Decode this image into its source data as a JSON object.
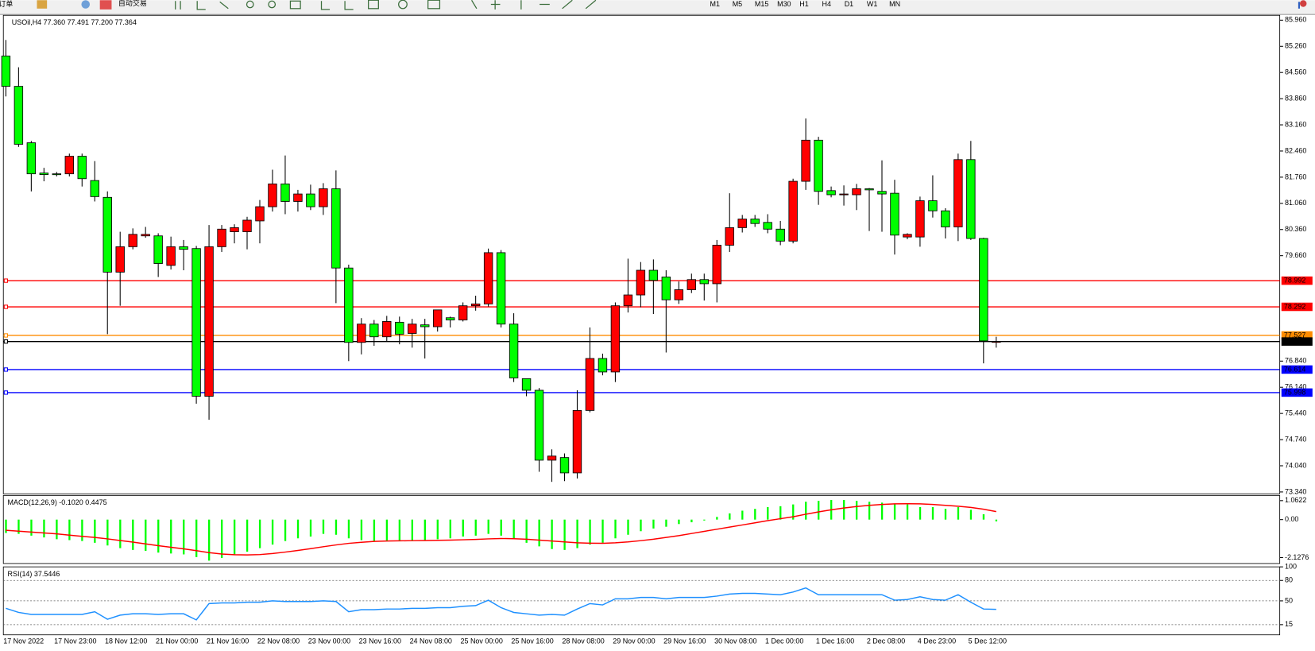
{
  "toolbar": {
    "order": "新订单",
    "autotrade": "自动交易",
    "timeframes": [
      "M1",
      "M5",
      "M15",
      "M30",
      "H1",
      "H4",
      "D1",
      "W1",
      "MN"
    ]
  },
  "chart_data": [
    {
      "type": "candlestick",
      "title": "USOil,H4 77.360 77.491 77.200 77.364",
      "categories": [
        "17 Nov 2022",
        null,
        null,
        null,
        "17 Nov 23:00",
        null,
        null,
        null,
        "18 Nov 12:00",
        null,
        null,
        null,
        "21 Nov 00:00",
        null,
        null,
        null,
        "21 Nov 16:00",
        null,
        null,
        null,
        "22 Nov 08:00",
        null,
        null,
        null,
        "23 Nov 00:00",
        null,
        null,
        null,
        "23 Nov 16:00",
        null,
        null,
        null,
        "24 Nov 08:00",
        null,
        null,
        null,
        "25 Nov 00:00",
        null,
        null,
        null,
        "25 Nov 16:00",
        null,
        null,
        null,
        "28 Nov 08:00",
        null,
        null,
        null,
        "29 Nov 00:00",
        null,
        null,
        null,
        "29 Nov 16:00",
        null,
        null,
        null,
        "30 Nov 08:00",
        null,
        null,
        null,
        "1 Dec 00:00",
        null,
        null,
        null,
        "1 Dec 16:00",
        null,
        null,
        null,
        "2 Dec 08:00",
        null,
        null,
        null,
        "4 Dec 23:00",
        null,
        null,
        null,
        "5 Dec 12:00",
        null,
        null
      ],
      "open": [
        85.0,
        84.19,
        82.68,
        81.87,
        81.85,
        81.85,
        82.32,
        81.67,
        81.22,
        79.22,
        79.9,
        80.19,
        80.19,
        79.4,
        79.9,
        79.85,
        75.9,
        79.9,
        80.3,
        80.3,
        80.59,
        80.97,
        81.58,
        81.11,
        81.31,
        80.97,
        81.45,
        79.33,
        77.34,
        77.83,
        77.49,
        77.88,
        77.58,
        77.81,
        77.76,
        78.0,
        77.94,
        78.32,
        78.37,
        79.74,
        77.83,
        76.37,
        76.06,
        74.19,
        74.26,
        73.85,
        75.52,
        76.91,
        76.55,
        78.32,
        78.61,
        79.27,
        79.09,
        78.48,
        78.75,
        79.02,
        78.91,
        79.94,
        80.41,
        80.64,
        80.55,
        80.37,
        80.05,
        81.65,
        82.75,
        81.4,
        81.31,
        81.29,
        81.45,
        81.38,
        81.33,
        80.16,
        80.16,
        81.13,
        80.86,
        80.43,
        82.23,
        80.12,
        77.36
      ],
      "high": [
        85.43,
        84.7,
        82.73,
        82.01,
        81.9,
        82.39,
        82.39,
        82.19,
        81.38,
        80.3,
        80.39,
        80.43,
        80.26,
        80.17,
        80.08,
        79.92,
        80.48,
        80.48,
        80.5,
        80.7,
        81.15,
        81.96,
        82.34,
        81.42,
        81.56,
        81.6,
        81.94,
        79.42,
        77.99,
        77.94,
        78.05,
        78.03,
        77.97,
        77.97,
        78.21,
        78.03,
        78.41,
        78.59,
        79.85,
        79.81,
        78.12,
        76.37,
        76.12,
        74.48,
        74.37,
        76.06,
        77.74,
        77.04,
        78.41,
        79.58,
        79.49,
        79.56,
        79.27,
        78.97,
        79.18,
        79.18,
        80.08,
        81.33,
        80.75,
        80.75,
        80.77,
        80.59,
        81.72,
        83.33,
        82.84,
        81.51,
        81.54,
        81.58,
        81.47,
        82.21,
        81.69,
        80.26,
        81.24,
        81.81,
        80.93,
        82.39,
        82.73,
        80.14,
        77.491
      ],
      "low": [
        83.92,
        82.57,
        81.38,
        81.65,
        81.78,
        81.78,
        81.51,
        81.11,
        77.56,
        78.32,
        79.83,
        80.14,
        79.09,
        79.29,
        79.27,
        75.7,
        75.27,
        79.76,
        79.99,
        79.83,
        79.99,
        80.84,
        80.77,
        80.84,
        80.88,
        80.75,
        78.39,
        76.84,
        77.02,
        77.25,
        77.36,
        77.29,
        77.2,
        76.91,
        77.63,
        77.74,
        77.9,
        78.19,
        78.3,
        77.74,
        76.28,
        75.9,
        73.88,
        73.61,
        73.63,
        73.7,
        75.47,
        76.46,
        76.28,
        78.14,
        78.28,
        78.1,
        77.07,
        78.37,
        78.66,
        78.46,
        78.41,
        79.76,
        80.28,
        80.43,
        80.26,
        79.94,
        79.99,
        81.42,
        81.02,
        81.22,
        81.0,
        80.88,
        80.32,
        80.3,
        79.69,
        80.1,
        79.9,
        80.68,
        80.12,
        80.05,
        80.08,
        76.78,
        77.2
      ],
      "close": [
        84.19,
        82.64,
        81.85,
        81.83,
        81.83,
        82.32,
        81.72,
        81.24,
        79.22,
        79.9,
        80.23,
        80.23,
        79.45,
        79.9,
        79.83,
        75.9,
        79.9,
        80.37,
        80.41,
        80.61,
        80.97,
        81.58,
        81.11,
        81.31,
        80.97,
        81.45,
        79.33,
        77.34,
        77.83,
        77.49,
        77.9,
        77.56,
        77.83,
        77.76,
        78.21,
        77.94,
        78.32,
        78.37,
        79.74,
        77.83,
        76.39,
        76.06,
        74.19,
        74.3,
        73.85,
        75.52,
        76.91,
        76.55,
        78.32,
        78.61,
        79.27,
        79.0,
        78.48,
        78.75,
        79.02,
        78.91,
        79.94,
        80.41,
        80.64,
        80.52,
        80.37,
        80.05,
        81.65,
        82.75,
        81.38,
        81.29,
        81.31,
        81.45,
        81.42,
        81.31,
        80.21,
        80.23,
        81.13,
        80.86,
        80.43,
        82.23,
        80.12,
        77.38,
        77.364
      ],
      "up_color": "#ff0000",
      "down_color": "#00ff00",
      "ylim": [
        73.29,
        86.09
      ],
      "yticks": [
        {
          "value": 85.96,
          "label": "85.960"
        },
        {
          "value": 85.26,
          "label": "85.260"
        },
        {
          "value": 84.56,
          "label": "84.560"
        },
        {
          "value": 83.86,
          "label": "83.860"
        },
        {
          "value": 83.16,
          "label": "83.160"
        },
        {
          "value": 82.46,
          "label": "82.460"
        },
        {
          "value": 81.76,
          "label": "81.760"
        },
        {
          "value": 81.06,
          "label": "81.060"
        },
        {
          "value": 80.36,
          "label": "80.360"
        },
        {
          "value": 79.66,
          "label": "79.660"
        },
        {
          "value": 76.84,
          "label": "76.840"
        },
        {
          "value": 76.14,
          "label": "76.140"
        },
        {
          "value": 75.44,
          "label": "75.440"
        },
        {
          "value": 74.74,
          "label": "74.740"
        },
        {
          "value": 74.04,
          "label": "74.040"
        },
        {
          "value": 73.34,
          "label": "73.340"
        }
      ],
      "hlines": [
        {
          "value": 78.992,
          "color": "#ff0000"
        },
        {
          "value": 78.292,
          "color": "#ff0000"
        },
        {
          "value": 77.527,
          "color": "#ff8c00"
        },
        {
          "value": 77.364,
          "color": "#000000"
        },
        {
          "value": 76.614,
          "color": "#0000ff"
        },
        {
          "value": 75.998,
          "color": "#0000ff"
        }
      ]
    },
    {
      "type": "macd",
      "title": "MACD(12,26,9) -0.1020 0.4475",
      "histogram": {
        "color": "#00ff00",
        "values": [
          -0.75,
          -0.8,
          -0.9,
          -1.0,
          -1.1,
          -1.15,
          -1.2,
          -1.3,
          -1.45,
          -1.6,
          -1.7,
          -1.75,
          -1.85,
          -1.9,
          -1.95,
          -2.1,
          -2.3,
          -2.15,
          -1.95,
          -1.8,
          -1.6,
          -1.4,
          -1.2,
          -1.05,
          -0.95,
          -0.8,
          -0.85,
          -1.05,
          -1.15,
          -1.2,
          -1.2,
          -1.2,
          -1.15,
          -1.15,
          -1.1,
          -1.05,
          -0.95,
          -0.9,
          -0.8,
          -0.9,
          -1.1,
          -1.3,
          -1.5,
          -1.65,
          -1.7,
          -1.6,
          -1.4,
          -1.3,
          -1.05,
          -0.85,
          -0.65,
          -0.5,
          -0.4,
          -0.25,
          -0.15,
          -0.05,
          0.15,
          0.35,
          0.5,
          0.6,
          0.7,
          0.75,
          0.85,
          1.0,
          1.05,
          1.1,
          1.1,
          1.05,
          1.0,
          0.95,
          0.9,
          0.85,
          0.7,
          0.7,
          0.6,
          0.7,
          0.55,
          0.3,
          -0.1
        ]
      },
      "signal": {
        "color": "#ff0000",
        "values": [
          -0.6,
          -0.65,
          -0.7,
          -0.75,
          -0.8,
          -0.87,
          -0.94,
          -1.0,
          -1.08,
          -1.17,
          -1.26,
          -1.36,
          -1.46,
          -1.55,
          -1.64,
          -1.74,
          -1.85,
          -1.93,
          -1.97,
          -1.98,
          -1.96,
          -1.9,
          -1.82,
          -1.73,
          -1.63,
          -1.52,
          -1.42,
          -1.33,
          -1.27,
          -1.22,
          -1.2,
          -1.19,
          -1.18,
          -1.17,
          -1.16,
          -1.15,
          -1.13,
          -1.11,
          -1.08,
          -1.06,
          -1.07,
          -1.1,
          -1.15,
          -1.2,
          -1.25,
          -1.3,
          -1.32,
          -1.33,
          -1.3,
          -1.25,
          -1.18,
          -1.1,
          -1.0,
          -0.9,
          -0.78,
          -0.66,
          -0.54,
          -0.42,
          -0.3,
          -0.18,
          -0.06,
          0.05,
          0.16,
          0.3,
          0.43,
          0.55,
          0.65,
          0.73,
          0.8,
          0.85,
          0.88,
          0.89,
          0.88,
          0.85,
          0.8,
          0.75,
          0.68,
          0.58,
          0.4475
        ]
      },
      "ylim": [
        -2.46,
        1.35
      ],
      "yticks": [
        1.0622,
        {
          "value": 0,
          "label": "0.00"
        },
        -2.1276
      ]
    },
    {
      "type": "line",
      "title": "RSI(14) 37.5446",
      "color": "#1e90ff",
      "values": [
        39,
        33,
        30,
        30,
        30,
        30,
        30,
        34,
        23,
        29,
        31,
        31,
        30,
        31,
        31,
        22,
        46,
        47,
        47,
        48,
        48,
        50,
        49,
        49,
        49,
        50,
        49,
        34,
        37,
        37,
        38,
        38,
        39,
        39,
        40,
        40,
        42,
        43,
        51,
        40,
        33,
        31,
        29,
        30,
        29,
        38,
        46,
        44,
        53,
        53,
        55,
        55,
        53,
        55,
        55,
        55,
        57,
        60,
        61,
        61,
        60,
        59,
        63,
        69,
        59,
        59,
        59,
        59,
        59,
        59,
        51,
        52,
        56,
        52,
        51,
        59,
        48,
        38,
        37.5446
      ],
      "ylim": [
        0,
        100
      ],
      "yticks": [
        100,
        80,
        50,
        15
      ],
      "grid": true
    }
  ]
}
